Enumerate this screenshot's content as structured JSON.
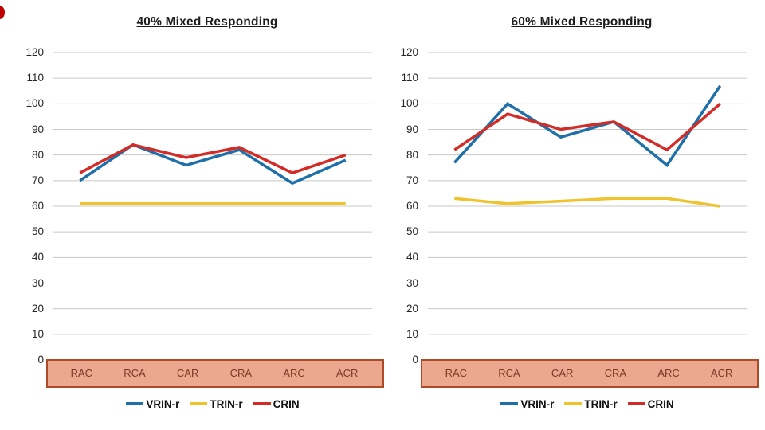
{
  "slide": {
    "background": "#ffffff",
    "decoration": {
      "edge_dot_color": "#c00000"
    }
  },
  "palette": {
    "gridline": "#c8c8c8",
    "category_box_fill": "#eba88e",
    "category_box_border": "#ae4a28",
    "category_text": "#7c3a26",
    "title_text": "#1c1c1c",
    "tick_text": "#262626"
  },
  "chart_data": [
    {
      "type": "line",
      "title": "40% Mixed Responding",
      "categories": [
        "RAC",
        "RCA",
        "CAR",
        "CRA",
        "ARC",
        "ACR"
      ],
      "series": [
        {
          "name": "VRIN-r",
          "color": "#1f6fa8",
          "values": [
            70,
            84,
            76,
            82,
            69,
            78
          ]
        },
        {
          "name": "TRIN-r",
          "color": "#efc32b",
          "values": [
            61,
            61,
            61,
            61,
            61,
            61
          ]
        },
        {
          "name": "CRIN",
          "color": "#d32b26",
          "values": [
            73,
            84,
            79,
            83,
            73,
            80
          ]
        }
      ],
      "ylim": [
        0,
        120
      ],
      "yticks": [
        120,
        110,
        100,
        90,
        80,
        70,
        60,
        50,
        40,
        30,
        20,
        10,
        0
      ],
      "grid": true,
      "legend_position": "bottom"
    },
    {
      "type": "line",
      "title": "60% Mixed Responding",
      "categories": [
        "RAC",
        "RCA",
        "CAR",
        "CRA",
        "ARC",
        "ACR"
      ],
      "series": [
        {
          "name": "VRIN-r",
          "color": "#1f6fa8",
          "values": [
            77,
            100,
            87,
            93,
            76,
            107
          ]
        },
        {
          "name": "TRIN-r",
          "color": "#efc32b",
          "values": [
            63,
            61,
            62,
            63,
            63,
            60
          ]
        },
        {
          "name": "CRIN",
          "color": "#d32b26",
          "values": [
            82,
            96,
            90,
            93,
            82,
            100
          ]
        }
      ],
      "ylim": [
        0,
        120
      ],
      "yticks": [
        120,
        110,
        100,
        90,
        80,
        70,
        60,
        50,
        40,
        30,
        20,
        10,
        0
      ],
      "grid": true,
      "legend_position": "bottom"
    }
  ]
}
